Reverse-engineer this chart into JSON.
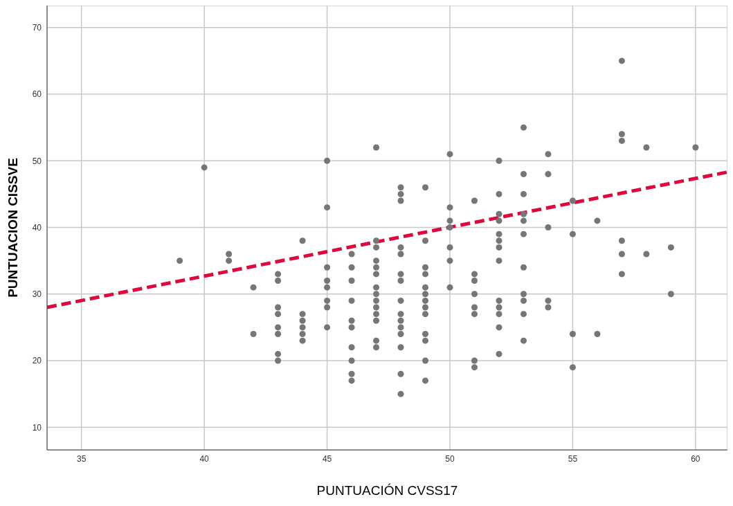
{
  "chart_data": {
    "type": "scatter",
    "xlabel": "PUNTUACIÓN CVSS17",
    "ylabel": "PUNTUACION CISSVE",
    "xlim": [
      33.6,
      61.3
    ],
    "xticks": [
      35,
      40,
      45,
      50,
      55,
      60
    ],
    "ylim": [
      6.6,
      73.3
    ],
    "yticks": [
      10,
      20,
      30,
      40,
      50,
      60,
      70
    ],
    "grid": true,
    "marker": "circle",
    "series": [
      {
        "color": "#767676",
        "x": [
          39,
          40,
          41,
          41,
          42,
          42,
          43,
          43,
          43,
          43,
          43,
          43,
          43,
          43,
          44,
          44,
          44,
          44,
          44,
          44,
          45,
          45,
          45,
          45,
          45,
          45,
          45,
          45,
          46,
          46,
          46,
          46,
          46,
          46,
          46,
          46,
          46,
          46,
          47,
          47,
          47,
          47,
          47,
          47,
          47,
          47,
          47,
          47,
          47,
          47,
          47,
          47,
          48,
          48,
          48,
          48,
          48,
          48,
          48,
          48,
          48,
          48,
          48,
          48,
          48,
          48,
          48,
          49,
          49,
          49,
          49,
          49,
          49,
          49,
          49,
          49,
          49,
          49,
          49,
          49,
          50,
          50,
          50,
          50,
          50,
          50,
          50,
          51,
          51,
          51,
          51,
          51,
          51,
          51,
          51,
          52,
          52,
          52,
          52,
          52,
          52,
          52,
          52,
          52,
          52,
          52,
          52,
          52,
          53,
          53,
          53,
          53,
          53,
          53,
          53,
          53,
          53,
          53,
          53,
          54,
          54,
          54,
          54,
          54,
          55,
          55,
          55,
          55,
          56,
          56,
          57,
          57,
          57,
          57,
          57,
          57,
          58,
          58,
          59,
          59,
          60
        ],
        "values": [
          35,
          49,
          36,
          35,
          31,
          24,
          33,
          32,
          28,
          27,
          25,
          24,
          21,
          20,
          38,
          27,
          26,
          25,
          24,
          23,
          50,
          43,
          34,
          32,
          31,
          29,
          28,
          25,
          36,
          34,
          32,
          29,
          26,
          25,
          22,
          20,
          18,
          17,
          52,
          38,
          37,
          35,
          34,
          33,
          31,
          30,
          29,
          28,
          27,
          26,
          23,
          22,
          46,
          45,
          44,
          37,
          36,
          33,
          32,
          29,
          27,
          26,
          25,
          24,
          22,
          18,
          15,
          46,
          38,
          34,
          33,
          31,
          30,
          29,
          28,
          27,
          24,
          23,
          20,
          17,
          51,
          43,
          41,
          40,
          37,
          35,
          31,
          44,
          33,
          32,
          30,
          28,
          27,
          20,
          19,
          50,
          45,
          42,
          41,
          39,
          38,
          37,
          35,
          29,
          28,
          27,
          25,
          21,
          55,
          48,
          45,
          42,
          41,
          39,
          34,
          30,
          29,
          27,
          23,
          51,
          48,
          40,
          29,
          28,
          44,
          39,
          24,
          19,
          41,
          24,
          65,
          54,
          53,
          38,
          36,
          33,
          52,
          36,
          37,
          30,
          52
        ]
      },
      {
        "type": "line",
        "color": "#dc0a3c",
        "line_style": "dashed",
        "marker": "none",
        "x": [
          33.6,
          61.3
        ],
        "values": [
          28.0,
          48.3
        ]
      }
    ]
  }
}
